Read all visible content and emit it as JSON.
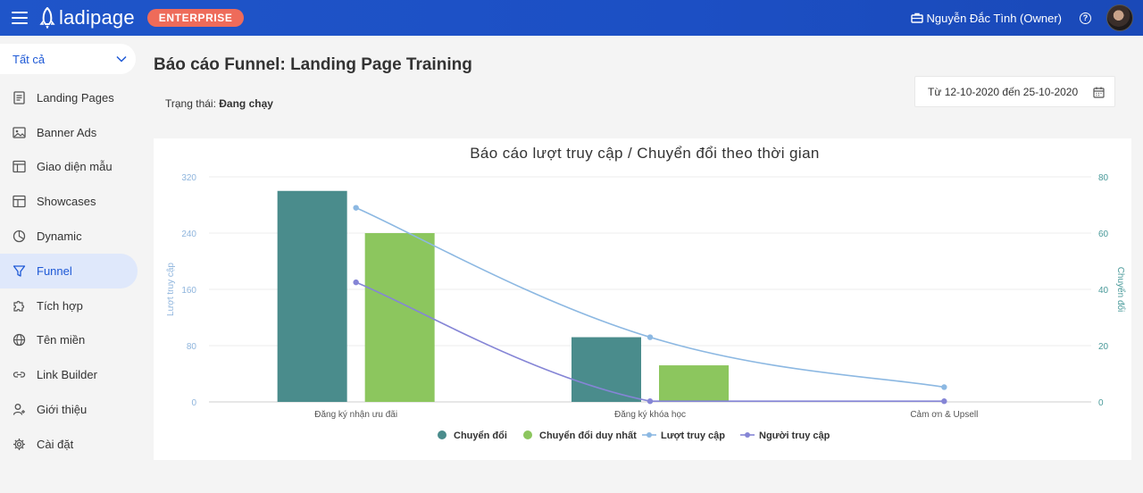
{
  "header": {
    "logo_text": "ladipage",
    "plan_badge": "ENTERPRISE",
    "user_name": "Nguyễn Đắc Tình (Owner)",
    "help_symbol": "?"
  },
  "sidebar": {
    "filter_value": "Tất cả",
    "items": [
      {
        "label": "Landing Pages",
        "icon": "document-icon"
      },
      {
        "label": "Banner Ads",
        "icon": "image-icon"
      },
      {
        "label": "Giao diện mẫu",
        "icon": "template-icon"
      },
      {
        "label": "Showcases",
        "icon": "showcase-icon"
      },
      {
        "label": "Dynamic",
        "icon": "dynamic-icon"
      },
      {
        "label": "Funnel",
        "icon": "funnel-icon",
        "active": true
      },
      {
        "label": "Tích hợp",
        "icon": "puzzle-icon"
      },
      {
        "label": "Tên miền",
        "icon": "globe-icon"
      },
      {
        "label": "Link Builder",
        "icon": "link-icon"
      },
      {
        "label": "Giới thiệu",
        "icon": "user-add-icon"
      },
      {
        "label": "Cài đặt",
        "icon": "gear-icon"
      }
    ]
  },
  "main": {
    "title": "Báo cáo Funnel: Landing Page Training",
    "status_label": "Trạng thái:",
    "status_value": "Đang chạy",
    "date_range": "Từ 12-10-2020 đến 25-10-2020"
  },
  "colors": {
    "header_blue": "#1f55c9",
    "badge": "#ee6b5a",
    "conversion": "#4a8c8c",
    "unique_conversion": "#8cc65e",
    "visits": "#8cb8e2",
    "visitors": "#8585d6",
    "left_axis": "#8fb5dd",
    "right_axis": "#4a9a9a"
  },
  "chart_data": {
    "type": "bar",
    "title": "Báo cáo lượt truy cập / Chuyển đổi theo thời gian",
    "categories": [
      "Đăng ký nhận ưu đãi",
      "Đăng ký khóa học",
      "Cảm ơn & Upsell"
    ],
    "left_axis": {
      "label": "Lượt truy cập",
      "ticks": [
        "0",
        "80",
        "160",
        "240",
        "320"
      ],
      "min": 0,
      "max": 320
    },
    "right_axis": {
      "label": "Chuyển đổi",
      "ticks": [
        "0",
        "20",
        "40",
        "60",
        "80"
      ],
      "min": 0,
      "max": 80
    },
    "grid": true,
    "legend_position": "bottom",
    "series": [
      {
        "name": "Chuyển đổi",
        "kind": "bar",
        "axis": "right",
        "values": [
          75,
          23,
          0
        ]
      },
      {
        "name": "Chuyển đổi duy nhất",
        "kind": "bar",
        "axis": "right",
        "values": [
          60,
          13,
          0
        ]
      },
      {
        "name": "Lượt truy cập",
        "kind": "line",
        "axis": "left",
        "values": [
          276,
          92,
          21
        ]
      },
      {
        "name": "Người truy cập",
        "kind": "line",
        "axis": "left",
        "values": [
          170,
          1,
          1
        ]
      }
    ]
  }
}
